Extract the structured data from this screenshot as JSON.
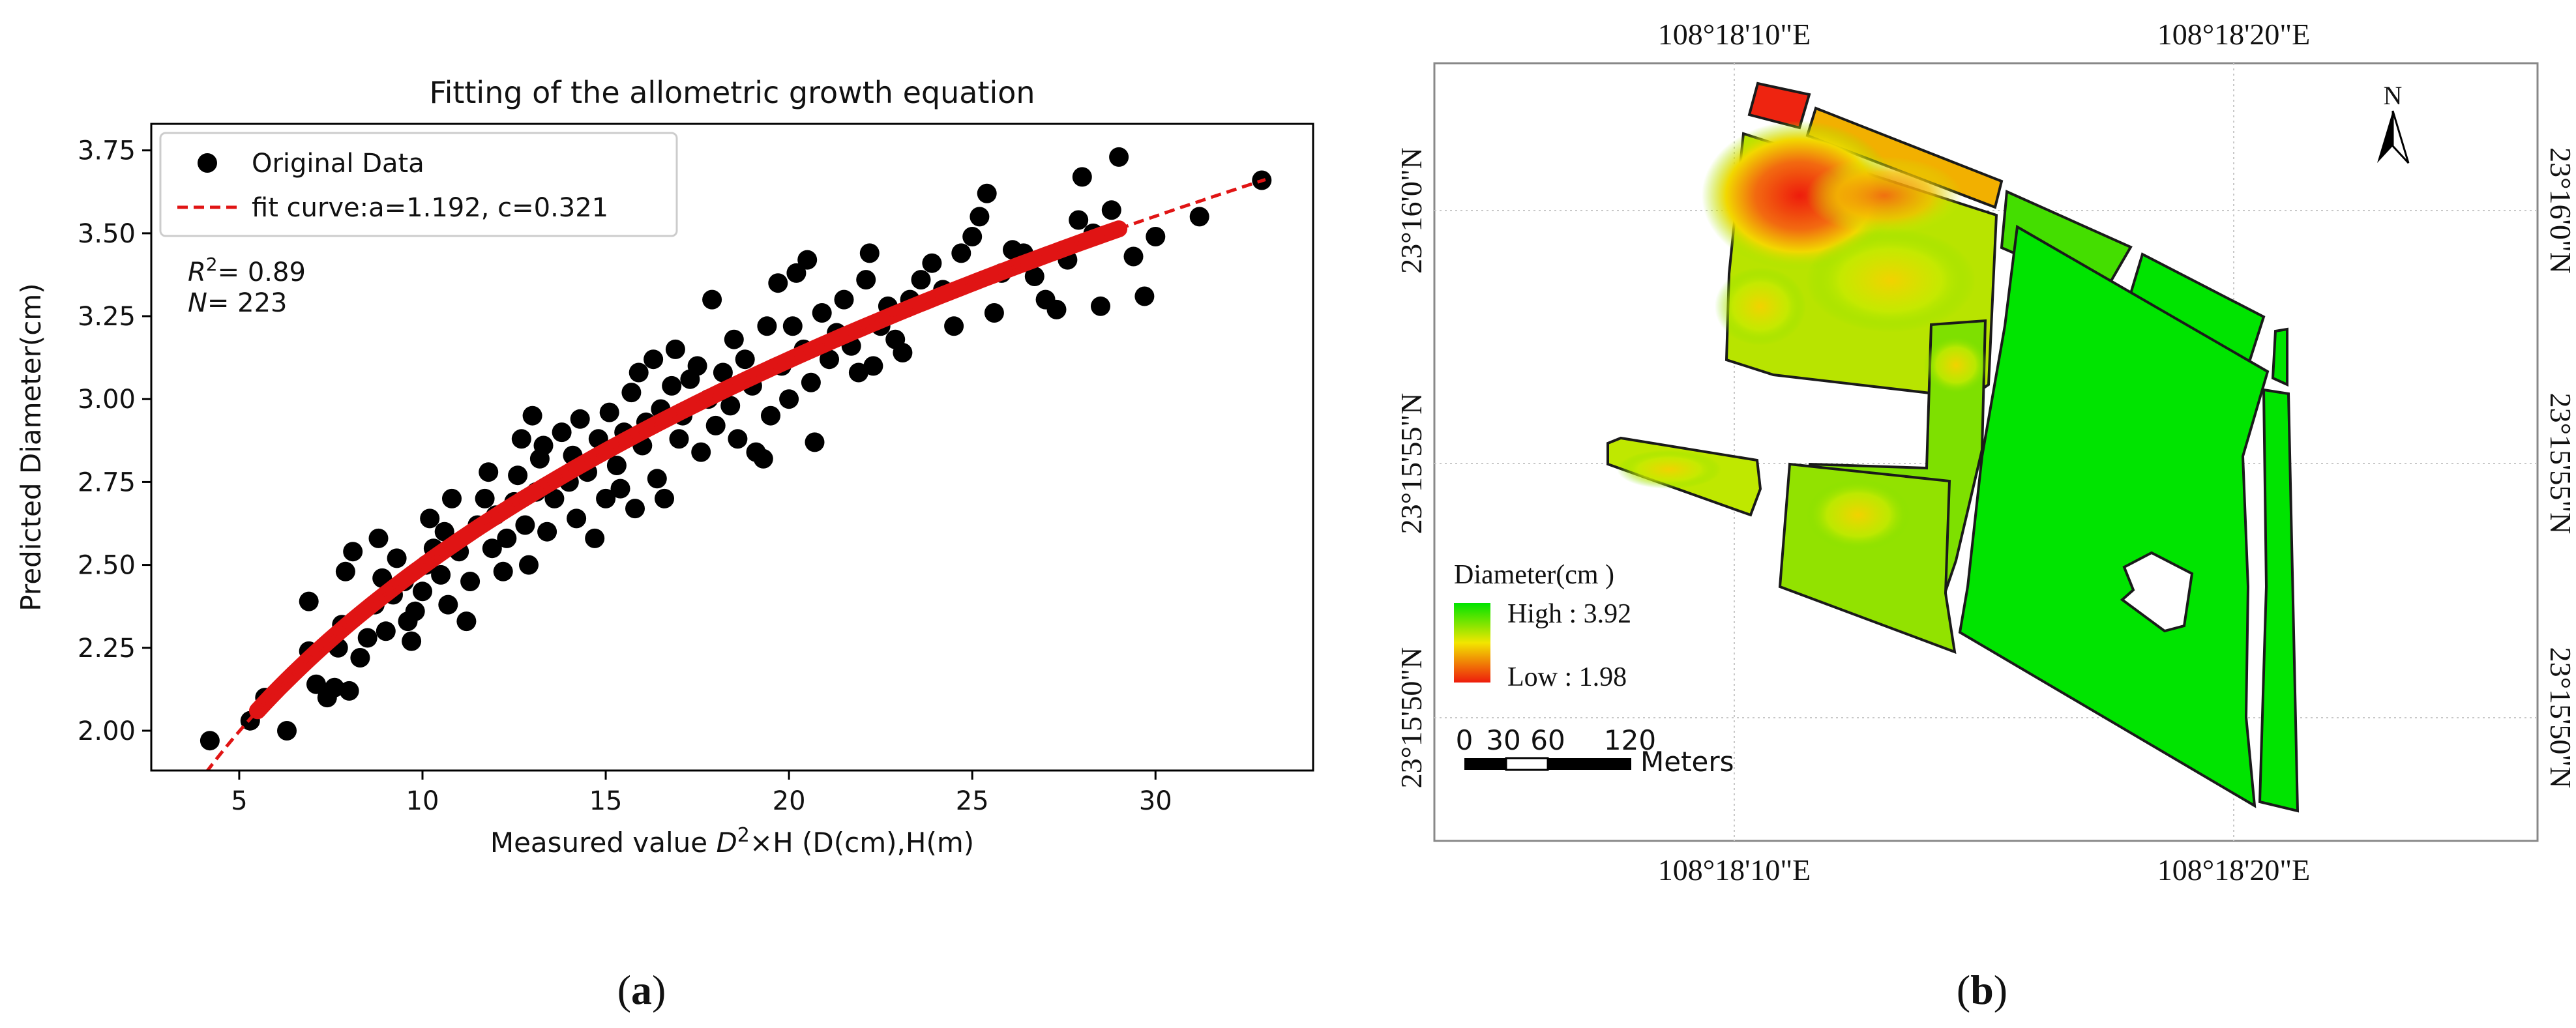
{
  "panel_a": {
    "label_open": "(",
    "label_letter": "a",
    "label_close": ")",
    "chart_data": {
      "type": "scatter",
      "title": "Fitting of the allometric growth equation",
      "xlabel_prefix": "Measured value ",
      "xlabel_var": "D",
      "xlabel_sup": "2",
      "xlabel_suffix": "×H   (D(cm),H(m)",
      "ylabel": "Predicted Diameter(cm)",
      "xlim": [
        2.6,
        34.3
      ],
      "ylim": [
        1.88,
        3.83
      ],
      "xticks": [
        5,
        10,
        15,
        20,
        25,
        30
      ],
      "yticks": [
        2.0,
        2.25,
        2.5,
        2.75,
        3.0,
        3.25,
        3.5,
        3.75
      ],
      "ytick_labels": [
        "2.00",
        "2.25",
        "2.50",
        "2.75",
        "3.00",
        "3.25",
        "3.50",
        "3.75"
      ],
      "legend": [
        "Original Data",
        "fit curve:a=1.192, c=0.321"
      ],
      "legend_position": "top-left",
      "stats": {
        "r2_label": "R",
        "r2_sup": "2",
        "r2_value": "= 0.89",
        "n_label": "N",
        "n_value": "= 223"
      },
      "fit": {
        "a": 1.192,
        "c": 0.321,
        "x_range": [
          4.1,
          33.0
        ]
      },
      "series": [
        {
          "name": "Original Data",
          "points": [
            [
              4.2,
              1.97
            ],
            [
              5.3,
              2.03
            ],
            [
              5.7,
              2.1
            ],
            [
              6.3,
              2.0
            ],
            [
              6.9,
              2.24
            ],
            [
              6.9,
              2.39
            ],
            [
              7.1,
              2.14
            ],
            [
              7.4,
              2.1
            ],
            [
              7.6,
              2.13
            ],
            [
              7.7,
              2.25
            ],
            [
              7.8,
              2.32
            ],
            [
              8.0,
              2.12
            ],
            [
              7.9,
              2.48
            ],
            [
              8.1,
              2.54
            ],
            [
              8.3,
              2.22
            ],
            [
              8.5,
              2.28
            ],
            [
              8.7,
              2.38
            ],
            [
              8.9,
              2.46
            ],
            [
              8.8,
              2.58
            ],
            [
              9.0,
              2.3
            ],
            [
              9.2,
              2.41
            ],
            [
              9.3,
              2.52
            ],
            [
              9.5,
              2.45
            ],
            [
              9.6,
              2.33
            ],
            [
              9.7,
              2.27
            ],
            [
              9.8,
              2.36
            ],
            [
              10.0,
              2.42
            ],
            [
              10.1,
              2.5
            ],
            [
              10.2,
              2.64
            ],
            [
              10.3,
              2.55
            ],
            [
              10.5,
              2.47
            ],
            [
              10.7,
              2.38
            ],
            [
              10.6,
              2.6
            ],
            [
              10.8,
              2.7
            ],
            [
              11.0,
              2.54
            ],
            [
              11.2,
              2.33
            ],
            [
              11.3,
              2.45
            ],
            [
              11.5,
              2.62
            ],
            [
              11.7,
              2.7
            ],
            [
              11.8,
              2.78
            ],
            [
              11.9,
              2.55
            ],
            [
              12.0,
              2.65
            ],
            [
              12.2,
              2.48
            ],
            [
              12.3,
              2.58
            ],
            [
              12.5,
              2.69
            ],
            [
              12.6,
              2.77
            ],
            [
              12.7,
              2.88
            ],
            [
              12.8,
              2.62
            ],
            [
              12.9,
              2.5
            ],
            [
              13.0,
              2.95
            ],
            [
              13.1,
              2.72
            ],
            [
              13.2,
              2.82
            ],
            [
              13.3,
              2.86
            ],
            [
              13.4,
              2.6
            ],
            [
              13.6,
              2.7
            ],
            [
              13.8,
              2.9
            ],
            [
              14.0,
              2.75
            ],
            [
              14.1,
              2.83
            ],
            [
              14.2,
              2.64
            ],
            [
              14.3,
              2.94
            ],
            [
              14.5,
              2.78
            ],
            [
              14.7,
              2.58
            ],
            [
              14.8,
              2.88
            ],
            [
              15.0,
              2.7
            ],
            [
              15.1,
              2.96
            ],
            [
              15.3,
              2.8
            ],
            [
              15.4,
              2.73
            ],
            [
              15.5,
              2.9
            ],
            [
              15.7,
              3.02
            ],
            [
              15.8,
              2.67
            ],
            [
              15.9,
              3.08
            ],
            [
              16.0,
              2.86
            ],
            [
              16.1,
              2.93
            ],
            [
              16.3,
              3.12
            ],
            [
              16.4,
              2.76
            ],
            [
              16.5,
              2.97
            ],
            [
              16.6,
              2.7
            ],
            [
              16.8,
              3.04
            ],
            [
              16.9,
              3.15
            ],
            [
              17.0,
              2.88
            ],
            [
              17.1,
              2.95
            ],
            [
              17.3,
              3.06
            ],
            [
              17.5,
              3.1
            ],
            [
              17.6,
              2.84
            ],
            [
              17.8,
              3.0
            ],
            [
              17.9,
              3.3
            ],
            [
              18.0,
              2.92
            ],
            [
              18.2,
              3.08
            ],
            [
              18.4,
              2.98
            ],
            [
              18.5,
              3.18
            ],
            [
              18.6,
              2.88
            ],
            [
              18.8,
              3.12
            ],
            [
              19.0,
              3.04
            ],
            [
              19.1,
              2.84
            ],
            [
              19.3,
              2.82
            ],
            [
              19.4,
              3.22
            ],
            [
              19.5,
              2.95
            ],
            [
              19.7,
              3.35
            ],
            [
              19.8,
              3.1
            ],
            [
              20.0,
              3.0
            ],
            [
              20.1,
              3.22
            ],
            [
              20.2,
              3.38
            ],
            [
              20.4,
              3.15
            ],
            [
              20.5,
              3.42
            ],
            [
              20.6,
              3.05
            ],
            [
              20.7,
              2.87
            ],
            [
              20.9,
              3.26
            ],
            [
              21.1,
              3.12
            ],
            [
              21.3,
              3.2
            ],
            [
              21.5,
              3.3
            ],
            [
              21.7,
              3.16
            ],
            [
              21.9,
              3.08
            ],
            [
              22.1,
              3.36
            ],
            [
              22.2,
              3.44
            ],
            [
              22.3,
              3.1
            ],
            [
              22.5,
              3.22
            ],
            [
              22.7,
              3.28
            ],
            [
              22.9,
              3.18
            ],
            [
              23.1,
              3.14
            ],
            [
              23.3,
              3.3
            ],
            [
              23.6,
              3.36
            ],
            [
              23.9,
              3.41
            ],
            [
              24.2,
              3.33
            ],
            [
              24.5,
              3.22
            ],
            [
              24.7,
              3.44
            ],
            [
              25.0,
              3.49
            ],
            [
              25.2,
              3.55
            ],
            [
              25.4,
              3.62
            ],
            [
              25.6,
              3.26
            ],
            [
              25.8,
              3.38
            ],
            [
              26.1,
              3.45
            ],
            [
              26.4,
              3.44
            ],
            [
              26.7,
              3.37
            ],
            [
              27.0,
              3.3
            ],
            [
              27.3,
              3.27
            ],
            [
              27.6,
              3.42
            ],
            [
              27.9,
              3.54
            ],
            [
              28.0,
              3.67
            ],
            [
              28.3,
              3.5
            ],
            [
              28.5,
              3.28
            ],
            [
              28.8,
              3.57
            ],
            [
              29.0,
              3.73
            ],
            [
              29.4,
              3.43
            ],
            [
              29.7,
              3.31
            ],
            [
              30.0,
              3.49
            ],
            [
              31.2,
              3.55
            ],
            [
              32.9,
              3.66
            ]
          ]
        },
        {
          "name": "fit curve:a=1.192, c=0.321",
          "formula": "a*x^c"
        }
      ]
    }
  },
  "panel_b": {
    "label_open": "(",
    "label_letter": "b",
    "label_close": ")",
    "map": {
      "top_lon_labels": [
        "108°18'10\"E",
        "108°18'20\"E"
      ],
      "bottom_lon_labels": [
        "108°18'10\"E",
        "108°18'20\"E"
      ],
      "left_lat_labels": [
        "23°16'0\"N",
        "23°15'55\"N",
        "23°15'50\"N"
      ],
      "right_lat_labels": [
        "23°16'0\"N",
        "23°15'55\"N",
        "23°15'50\"N"
      ],
      "north_label": "N",
      "legend_title": "Diameter(cm )",
      "legend_high": "High : 3.92",
      "legend_low": "Low : 1.98",
      "scale_ticks": [
        "0",
        "30",
        "60",
        "120"
      ],
      "scale_unit": "Meters",
      "colors": {
        "high": "#00e400",
        "mid": "#f2e600",
        "low": "#ee1c0c",
        "frame": "#7f7f7f"
      }
    }
  }
}
